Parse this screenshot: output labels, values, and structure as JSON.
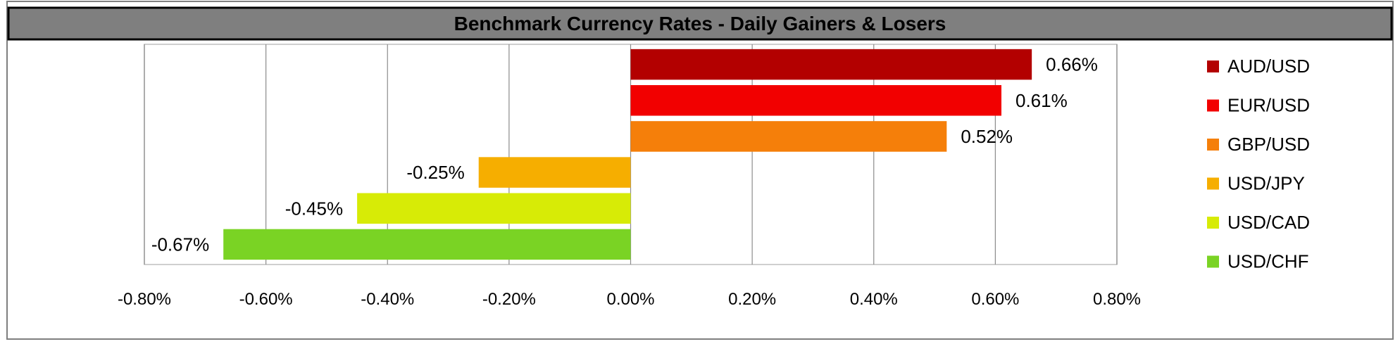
{
  "chart_data": {
    "type": "bar",
    "orientation": "horizontal",
    "title": "Benchmark Currency Rates - Daily Gainers & Losers",
    "categories": [
      "AUD/USD",
      "EUR/USD",
      "GBP/USD",
      "USD/JPY",
      "USD/CAD",
      "USD/CHF"
    ],
    "values": [
      0.66,
      0.61,
      0.52,
      -0.25,
      -0.45,
      -0.67
    ],
    "data_labels": [
      "0.66%",
      "0.61%",
      "0.52%",
      "-0.25%",
      "-0.45%",
      "-0.67%"
    ],
    "colors": [
      "#b30000",
      "#f20000",
      "#f57f0a",
      "#f6ae00",
      "#d7eb06",
      "#7ad324"
    ],
    "xlim": [
      -0.8,
      0.8
    ],
    "x_ticks": [
      -0.8,
      -0.6,
      -0.4,
      -0.2,
      0.0,
      0.2,
      0.4,
      0.6,
      0.8
    ],
    "x_tick_labels": [
      "-0.80%",
      "-0.60%",
      "-0.40%",
      "-0.20%",
      "0.00%",
      "0.20%",
      "0.40%",
      "0.60%",
      "0.80%"
    ],
    "grid": "vertical",
    "legend": {
      "position": "right",
      "entries": [
        "AUD/USD",
        "EUR/USD",
        "GBP/USD",
        "USD/JPY",
        "USD/CAD",
        "USD/CHF"
      ]
    },
    "title_bar_color": "#7f7f7f"
  }
}
